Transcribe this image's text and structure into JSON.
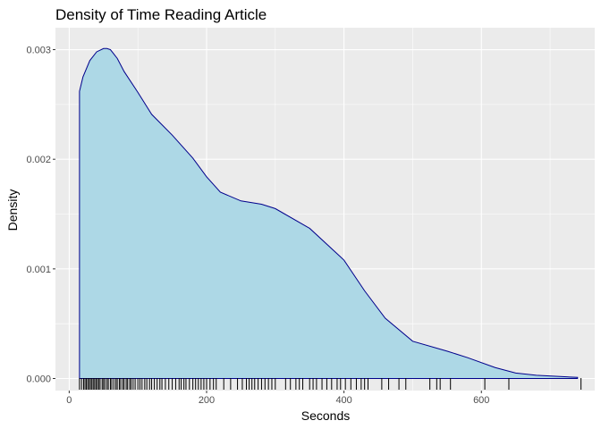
{
  "chart_data": {
    "type": "area",
    "title": "Density of Time Reading Article",
    "xlabel": "Seconds",
    "ylabel": "Density",
    "xlim": [
      -20,
      765
    ],
    "ylim": [
      -0.00011,
      0.0032
    ],
    "x_ticks": [
      0,
      200,
      400,
      600
    ],
    "x_tick_labels": [
      "0",
      "200",
      "400",
      "600"
    ],
    "y_ticks": [
      0.0,
      0.001,
      0.002,
      0.003
    ],
    "y_tick_labels": [
      "0.000",
      "0.001",
      "0.002",
      "0.003"
    ],
    "grid": true,
    "series": [
      {
        "fill": "#add8e6",
        "stroke": "#00008b",
        "x": [
          15,
          20,
          30,
          40,
          50,
          55,
          60,
          70,
          80,
          100,
          120,
          150,
          180,
          200,
          220,
          250,
          280,
          300,
          350,
          400,
          430,
          460,
          500,
          550,
          580,
          620,
          650,
          680,
          740
        ],
        "y": [
          0.00262,
          0.00275,
          0.0029,
          0.00298,
          0.00301,
          0.00301,
          0.003,
          0.00292,
          0.0028,
          0.00261,
          0.00241,
          0.00222,
          0.00201,
          0.00184,
          0.0017,
          0.00162,
          0.00159,
          0.00155,
          0.00137,
          0.00108,
          0.0008,
          0.00055,
          0.00034,
          0.00025,
          0.00019,
          0.0001,
          5e-05,
          3e-05,
          1e-05
        ]
      }
    ],
    "rug": [
      15,
      18,
      21,
      23,
      25,
      27,
      29,
      31,
      33,
      35,
      37,
      39,
      41,
      43,
      45,
      48,
      50,
      52,
      55,
      57,
      60,
      62,
      65,
      68,
      70,
      73,
      75,
      78,
      80,
      83,
      85,
      88,
      90,
      93,
      96,
      100,
      103,
      106,
      110,
      113,
      117,
      120,
      124,
      128,
      132,
      135,
      140,
      145,
      150,
      155,
      160,
      163,
      167,
      170,
      175,
      180,
      184,
      188,
      192,
      196,
      200,
      205,
      210,
      214,
      225,
      235,
      245,
      252,
      258,
      262,
      266,
      270,
      275,
      280,
      285,
      290,
      295,
      300,
      315,
      322,
      330,
      335,
      340,
      350,
      355,
      360,
      368,
      375,
      382,
      390,
      395,
      402,
      410,
      418,
      425,
      430,
      435,
      455,
      465,
      480,
      490,
      525,
      535,
      540,
      555,
      605,
      640,
      745
    ]
  }
}
